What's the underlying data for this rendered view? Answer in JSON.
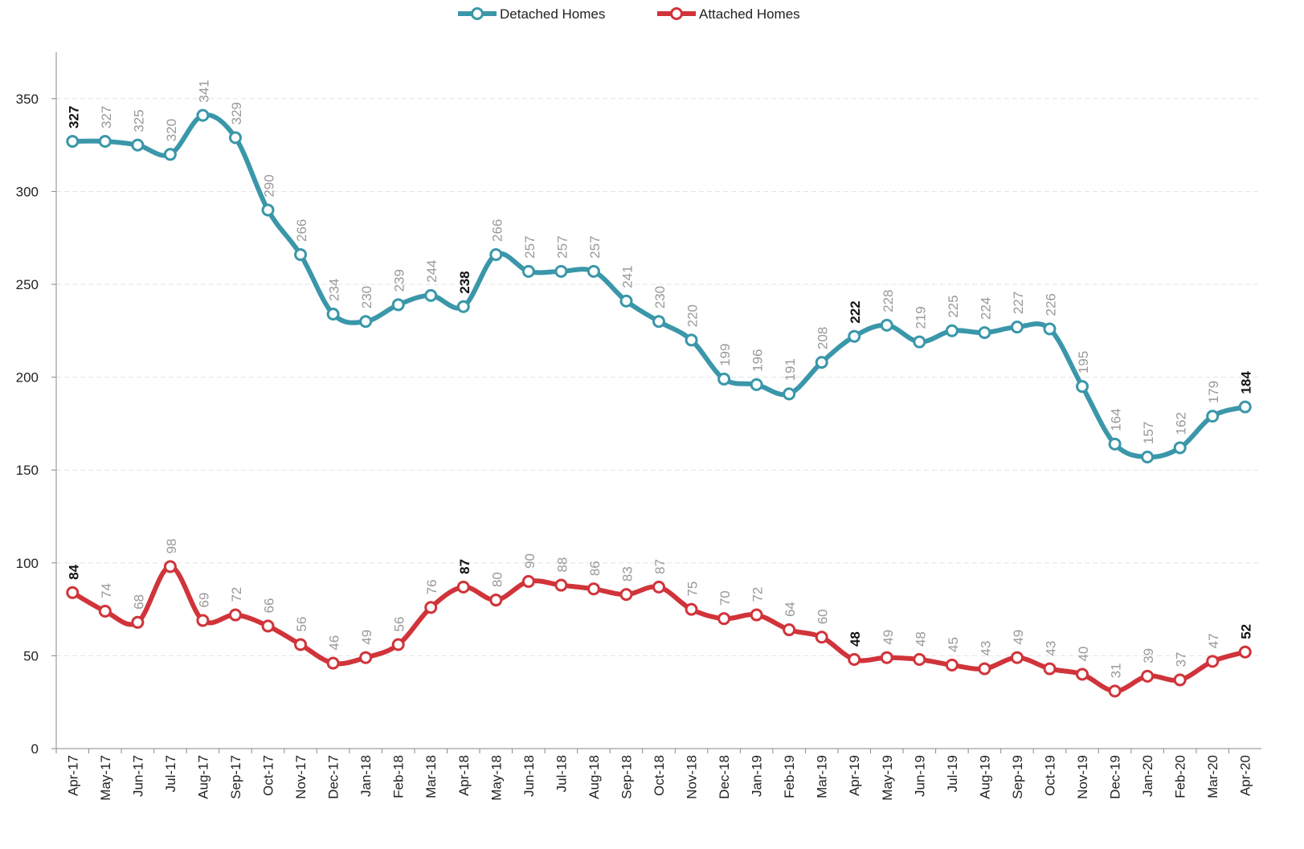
{
  "chart_data": {
    "type": "line",
    "categories": [
      "Apr-17",
      "May-17",
      "Jun-17",
      "Jul-17",
      "Aug-17",
      "Sep-17",
      "Oct-17",
      "Nov-17",
      "Dec-17",
      "Jan-18",
      "Feb-18",
      "Mar-18",
      "Apr-18",
      "May-18",
      "Jun-18",
      "Jul-18",
      "Aug-18",
      "Sep-18",
      "Oct-18",
      "Nov-18",
      "Dec-18",
      "Jan-19",
      "Feb-19",
      "Mar-19",
      "Apr-19",
      "May-19",
      "Jun-19",
      "Jul-19",
      "Aug-19",
      "Sep-19",
      "Oct-19",
      "Nov-19",
      "Dec-19",
      "Jan-20",
      "Feb-20",
      "Mar-20",
      "Apr-20"
    ],
    "series": [
      {
        "name": "Detached Homes",
        "color": "#3a97a9",
        "values": [
          327,
          327,
          325,
          320,
          341,
          329,
          290,
          266,
          234,
          230,
          239,
          244,
          238,
          266,
          257,
          257,
          257,
          241,
          230,
          220,
          199,
          196,
          191,
          208,
          222,
          228,
          219,
          225,
          224,
          227,
          226,
          195,
          164,
          157,
          162,
          179,
          184
        ]
      },
      {
        "name": "Attached Homes",
        "color": "#d0343a",
        "values": [
          84,
          74,
          68,
          98,
          69,
          72,
          66,
          56,
          46,
          49,
          56,
          76,
          87,
          80,
          90,
          88,
          86,
          83,
          87,
          75,
          70,
          72,
          64,
          60,
          48,
          49,
          48,
          45,
          43,
          49,
          43,
          40,
          31,
          39,
          37,
          47,
          52
        ]
      }
    ],
    "bold_label_indices": [
      0,
      12,
      24,
      36
    ],
    "ylim": [
      0,
      375
    ],
    "yticks": [
      0,
      50,
      100,
      150,
      200,
      250,
      300,
      350
    ],
    "grid": true,
    "legend": "top"
  }
}
